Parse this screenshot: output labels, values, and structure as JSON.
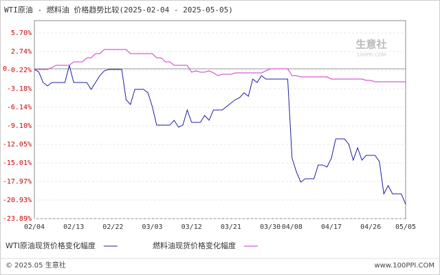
{
  "chart_data": {
    "type": "line",
    "title": "WTI原油 - 燃料油 价格趋势比较(2025-02-04 - 2025-05-05)",
    "categories": [
      "02/04",
      null,
      null,
      null,
      null,
      null,
      null,
      null,
      null,
      "02/13",
      null,
      null,
      null,
      null,
      null,
      null,
      null,
      null,
      "02/22",
      null,
      null,
      null,
      null,
      null,
      null,
      null,
      null,
      "03/03",
      null,
      null,
      null,
      null,
      null,
      null,
      null,
      null,
      "03/12",
      null,
      null,
      null,
      null,
      null,
      null,
      null,
      null,
      "03/21",
      null,
      null,
      null,
      null,
      null,
      null,
      null,
      null,
      "03/30",
      null,
      null,
      null,
      null,
      "04/08",
      null,
      null,
      null,
      null,
      null,
      null,
      null,
      null,
      "04/17",
      null,
      null,
      null,
      null,
      null,
      null,
      null,
      null,
      "04/26",
      null,
      null,
      null,
      null,
      null,
      null,
      null,
      "05/05"
    ],
    "series": [
      {
        "name": "WTI原油现货价格变化幅度",
        "color": "#1c1ca8",
        "values": [
          -0.11,
          -0.5,
          -2.19,
          -2.74,
          -2.19,
          -2.19,
          -2.19,
          -2.19,
          0.55,
          -2.19,
          -2.19,
          -2.19,
          -2.19,
          -3.29,
          -2.19,
          -1.09,
          -0.33,
          -0.11,
          -0.11,
          -0.11,
          -0.11,
          -4.93,
          -5.7,
          -3.29,
          -3.29,
          -3.29,
          -3.83,
          -6.03,
          -8.98,
          -8.98,
          -8.98,
          -8.98,
          -8.22,
          -9.31,
          -8.98,
          -6.57,
          -8.55,
          -8.55,
          -8.55,
          -7.45,
          -8.22,
          -6.57,
          -6.57,
          -6.57,
          -6.03,
          -5.48,
          -4.93,
          -4.6,
          -3.83,
          -4.38,
          -1.64,
          -2.19,
          -1.09,
          -1.64,
          -1.64,
          -1.64,
          -1.64,
          -1.64,
          -1.64,
          -14.25,
          -16.44,
          -18.08,
          -17.53,
          -17.53,
          -17.53,
          -15.34,
          -15.34,
          -15.67,
          -14.25,
          -11.18,
          -11.18,
          -11.18,
          -12.05,
          -14.57,
          -12.6,
          -14.57,
          -13.81,
          -13.81,
          -13.81,
          -14.79,
          -19.94,
          -18.63,
          -19.94,
          -19.94,
          -19.94,
          -21.59
        ]
      },
      {
        "name": "燃料油现货价格变化幅度",
        "color": "#cc33cc",
        "values": [
          -0.11,
          -0.11,
          -0.11,
          -0.11,
          0.2,
          0.55,
          0.55,
          0.55,
          0.55,
          1.1,
          1.1,
          1.1,
          1.74,
          1.74,
          2.41,
          2.41,
          3.07,
          3.07,
          3.07,
          3.07,
          3.07,
          3.07,
          2.41,
          2.41,
          2.41,
          2.41,
          2.41,
          2.41,
          1.74,
          1.74,
          1.1,
          1.1,
          0.55,
          0.55,
          0.55,
          0.55,
          -0.55,
          -0.33,
          -0.55,
          -0.55,
          -0.33,
          -0.66,
          -1.09,
          -0.88,
          -0.88,
          -0.88,
          -0.66,
          -0.66,
          -0.66,
          -0.66,
          -0.66,
          -0.66,
          -0.66,
          -0.33,
          0.0,
          0.0,
          0.0,
          0.0,
          0.0,
          -1.09,
          -1.09,
          -1.3,
          -1.3,
          -1.3,
          -1.3,
          -1.3,
          -1.3,
          -1.3,
          -1.64,
          -1.64,
          -1.64,
          -1.64,
          -1.64,
          -1.64,
          -1.64,
          -1.64,
          -1.85,
          -1.85,
          -2.08,
          -2.08,
          -2.08,
          -2.08,
          -2.08,
          -2.08,
          -2.08,
          -2.08
        ]
      }
    ],
    "ylim": [
      -23.89,
      5.7
    ],
    "yticks": [
      {
        "value": 5.7,
        "label": "5.70%"
      },
      {
        "value": 2.74,
        "label": "2.74%"
      },
      0,
      {
        "value": -0.22,
        "label": "-0.22%"
      },
      {
        "value": -3.18,
        "label": "-3.18%"
      },
      {
        "value": -6.14,
        "label": "-6.14%"
      },
      {
        "value": -9.1,
        "label": "-9.10%"
      },
      {
        "value": -12.05,
        "label": "-12.05%"
      },
      {
        "value": -15.01,
        "label": "-15.01%"
      },
      {
        "value": -17.97,
        "label": "-17.97%"
      },
      {
        "value": -20.93,
        "label": "-20.93%"
      },
      {
        "value": -23.89,
        "label": "-23.89%"
      }
    ],
    "grid": true,
    "watermark": "生意社",
    "watermark_sub": "100PPI.COM",
    "footer_left": "© 2025.05 生意社",
    "footer_right": "www.100PPI.COM"
  }
}
